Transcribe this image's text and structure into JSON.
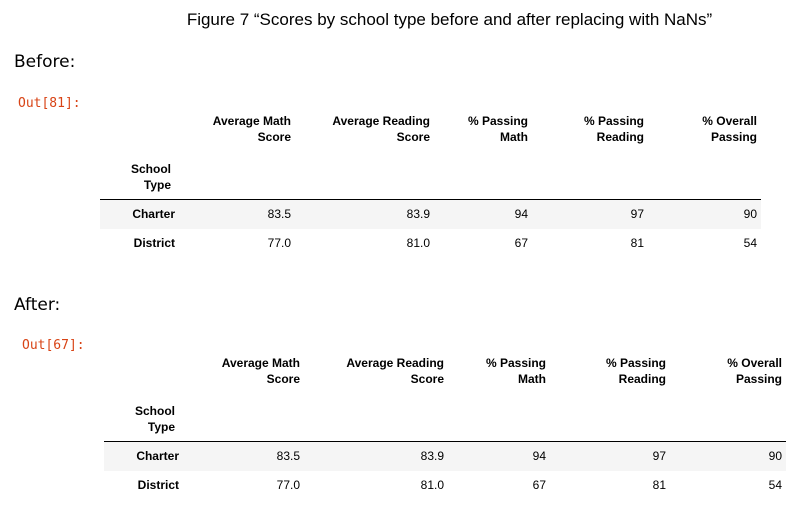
{
  "caption": "Figure 7 “Scores by school type before and after replacing with NaNs”",
  "before": {
    "label": "Before:",
    "prompt": "Out[81]:",
    "index_header": [
      "School",
      "Type"
    ],
    "columns": [
      [
        "Average Math",
        "Score"
      ],
      [
        "Average Reading",
        "Score"
      ],
      [
        "% Passing",
        "Math"
      ],
      [
        "% Passing",
        "Reading"
      ],
      [
        "% Overall",
        "Passing"
      ]
    ],
    "rows": [
      {
        "index": "Charter",
        "values": [
          "83.5",
          "83.9",
          "94",
          "97",
          "90"
        ]
      },
      {
        "index": "District",
        "values": [
          "77.0",
          "81.0",
          "67",
          "81",
          "54"
        ]
      }
    ]
  },
  "after": {
    "label": "After:",
    "prompt": "Out[67]:",
    "index_header": [
      "School",
      "Type"
    ],
    "columns": [
      [
        "Average Math",
        "Score"
      ],
      [
        "Average Reading",
        "Score"
      ],
      [
        "% Passing",
        "Math"
      ],
      [
        "% Passing",
        "Reading"
      ],
      [
        "% Overall",
        "Passing"
      ]
    ],
    "rows": [
      {
        "index": "Charter",
        "values": [
          "83.5",
          "83.9",
          "94",
          "97",
          "90"
        ]
      },
      {
        "index": "District",
        "values": [
          "77.0",
          "81.0",
          "67",
          "81",
          "54"
        ]
      }
    ]
  }
}
